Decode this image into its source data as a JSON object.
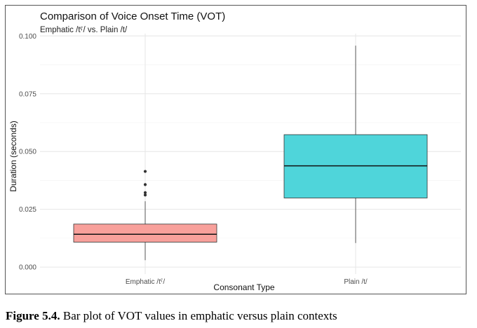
{
  "chart_data": {
    "type": "box",
    "title": "Comparison of Voice Onset Time (VOT)",
    "subtitle": "Emphatic /tˤ/ vs. Plain /t/",
    "xlabel": "Consonant Type",
    "ylabel": "Duration (seconds)",
    "ylim": [
      -0.003,
      0.101
    ],
    "yticks": [
      0.0,
      0.025,
      0.05,
      0.075,
      0.1
    ],
    "ytick_labels": [
      "0.000",
      "0.025",
      "0.050",
      "0.075",
      "0.100"
    ],
    "grid": true,
    "legend": "none",
    "categories": [
      "Emphatic /tˤ/",
      "Plain /t/"
    ],
    "series": [
      {
        "category": "Emphatic /tˤ/",
        "color": "#f8a09b",
        "whisker_low": 0.003,
        "q1": 0.0108,
        "median": 0.0142,
        "q3": 0.0186,
        "whisker_high": 0.0285,
        "outliers": [
          0.0312,
          0.0322,
          0.0357,
          0.0414
        ]
      },
      {
        "category": "Plain /t/",
        "color": "#4fd5da",
        "whisker_low": 0.0104,
        "q1": 0.0299,
        "median": 0.0438,
        "q3": 0.0573,
        "whisker_high": 0.0958,
        "outliers": []
      }
    ]
  },
  "caption": {
    "label": "Figure 5.4.",
    "text": " Bar plot of VOT values in emphatic versus plain contexts"
  }
}
